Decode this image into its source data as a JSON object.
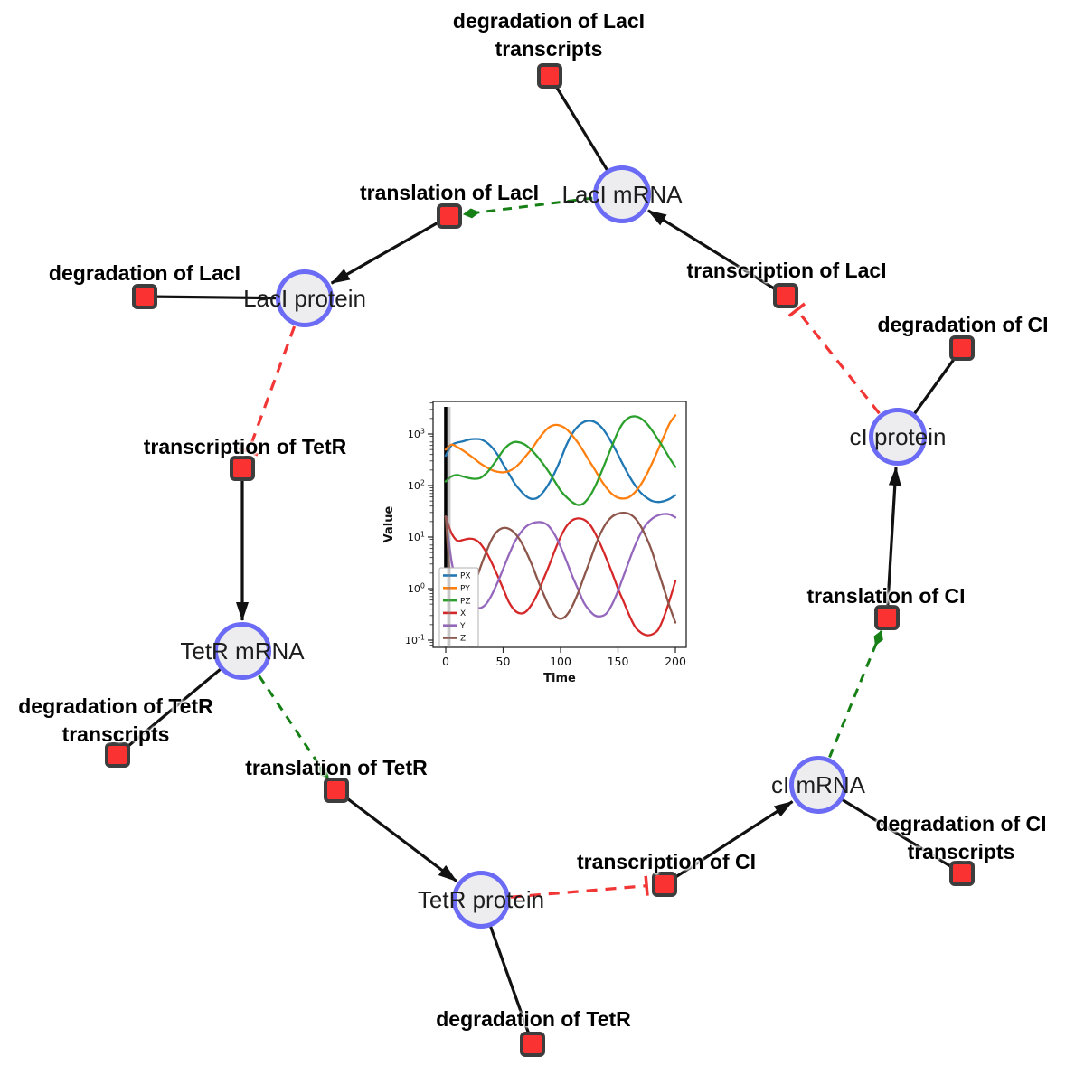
{
  "diagram": {
    "species": [
      {
        "id": "laci-mrna",
        "label": "LacI mRNA"
      },
      {
        "id": "laci-protein",
        "label": "LacI protein"
      },
      {
        "id": "tetr-mrna",
        "label": "TetR mRNA"
      },
      {
        "id": "tetr-protein",
        "label": "TetR protein"
      },
      {
        "id": "ci-mrna",
        "label": "cI mRNA"
      },
      {
        "id": "ci-protein",
        "label": "cI protein"
      }
    ],
    "reactions": [
      {
        "id": "deg-laci-transcripts",
        "label": "degradation of LacI transcripts"
      },
      {
        "id": "translation-laci",
        "label": "translation of LacI"
      },
      {
        "id": "deg-laci",
        "label": "degradation of LacI"
      },
      {
        "id": "transcription-laci",
        "label": "transcription of LacI"
      },
      {
        "id": "deg-ci",
        "label": "degradation of CI"
      },
      {
        "id": "transcription-tetr",
        "label": "transcription of TetR"
      },
      {
        "id": "deg-tetr-transcripts",
        "label": "degradation of TetR transcripts"
      },
      {
        "id": "translation-tetr",
        "label": "translation of TetR"
      },
      {
        "id": "deg-tetr",
        "label": "degradation of TetR"
      },
      {
        "id": "transcription-ci",
        "label": "transcription of CI"
      },
      {
        "id": "deg-ci-transcripts",
        "label": "degradation of CI transcripts"
      },
      {
        "id": "translation-ci",
        "label": "translation of CI"
      }
    ]
  },
  "colors": {
    "species_fill": "#ededf0",
    "species_border": "#6b6bf5",
    "reaction_fill": "#fa3232",
    "reaction_border": "#3d3d3d",
    "edge_black": "#111111",
    "edge_catalysis_green": "#168016",
    "edge_inhibition_red": "#f23535"
  },
  "chart_data": {
    "type": "line",
    "title": "",
    "xlabel": "Time",
    "ylabel": "Value",
    "x_ticks": [
      0,
      50,
      100,
      150,
      200
    ],
    "y_scale": "log",
    "y_tick_exponents": [
      -1,
      0,
      1,
      2,
      3
    ],
    "xlim": [
      -11,
      209
    ],
    "ylim_log10": [
      -1.14,
      3.63
    ],
    "grid": false,
    "legend_position": "lower left",
    "marker_line_x": 0,
    "x": [
      0,
      5,
      10,
      15,
      20,
      25,
      30,
      35,
      40,
      45,
      50,
      55,
      60,
      65,
      70,
      75,
      80,
      85,
      90,
      95,
      100,
      105,
      110,
      115,
      120,
      125,
      130,
      135,
      140,
      145,
      150,
      155,
      160,
      165,
      170,
      175,
      180,
      185,
      190,
      195,
      200
    ],
    "series": [
      {
        "name": "PX",
        "color": "#1f77b4",
        "values": [
          380,
          600,
          680,
          720,
          780,
          800,
          790,
          700,
          560,
          400,
          260,
          170,
          110,
          80,
          62,
          55,
          58,
          75,
          110,
          180,
          320,
          600,
          1000,
          1400,
          1700,
          1800,
          1700,
          1400,
          1000,
          650,
          400,
          240,
          150,
          100,
          72,
          58,
          50,
          48,
          50,
          55,
          65
        ]
      },
      {
        "name": "PY",
        "color": "#ff7f0e",
        "values": [
          500,
          620,
          560,
          480,
          400,
          330,
          270,
          230,
          200,
          185,
          180,
          190,
          220,
          280,
          380,
          520,
          750,
          1050,
          1350,
          1500,
          1450,
          1250,
          950,
          680,
          460,
          300,
          200,
          130,
          90,
          68,
          58,
          56,
          60,
          75,
          105,
          165,
          280,
          500,
          900,
          1600,
          2300
        ]
      },
      {
        "name": "PZ",
        "color": "#2ca02c",
        "values": [
          120,
          150,
          160,
          150,
          140,
          135,
          140,
          170,
          230,
          330,
          480,
          620,
          700,
          680,
          600,
          480,
          360,
          260,
          180,
          120,
          80,
          60,
          48,
          42,
          45,
          60,
          95,
          170,
          320,
          600,
          1100,
          1700,
          2100,
          2200,
          2000,
          1600,
          1150,
          780,
          520,
          340,
          230
        ]
      },
      {
        "name": "X",
        "color": "#d62728",
        "values": [
          25,
          12,
          8.5,
          8.8,
          9.3,
          9,
          7.5,
          5.2,
          3.2,
          1.8,
          1,
          0.55,
          0.38,
          0.33,
          0.36,
          0.5,
          0.8,
          1.5,
          2.8,
          5.5,
          10,
          16,
          21,
          23,
          22,
          18,
          12,
          7,
          3.8,
          2,
          1,
          0.55,
          0.3,
          0.18,
          0.14,
          0.125,
          0.13,
          0.16,
          0.28,
          0.6,
          1.4
        ]
      },
      {
        "name": "Y",
        "color": "#9467bd",
        "values": [
          25,
          3.5,
          1.2,
          0.8,
          0.55,
          0.45,
          0.42,
          0.5,
          0.75,
          1.3,
          2.4,
          4.5,
          8,
          12,
          16,
          18.5,
          19.5,
          19,
          16,
          11,
          6.5,
          3.5,
          1.8,
          1,
          0.55,
          0.38,
          0.3,
          0.29,
          0.33,
          0.5,
          0.9,
          1.8,
          3.6,
          7,
          12,
          18,
          23,
          26.5,
          28,
          27.5,
          24
        ]
      },
      {
        "name": "Z",
        "color": "#8c564b",
        "values": [
          25,
          0.8,
          0.35,
          0.4,
          0.6,
          1.2,
          2.5,
          5,
          9,
          13,
          15,
          14.5,
          12,
          8.5,
          5.2,
          2.9,
          1.5,
          0.8,
          0.45,
          0.3,
          0.26,
          0.3,
          0.45,
          0.8,
          1.6,
          3.2,
          6.5,
          12,
          19,
          25,
          28.5,
          29.5,
          28,
          23,
          16,
          9.5,
          5,
          2.2,
          1,
          0.45,
          0.22
        ]
      }
    ]
  }
}
